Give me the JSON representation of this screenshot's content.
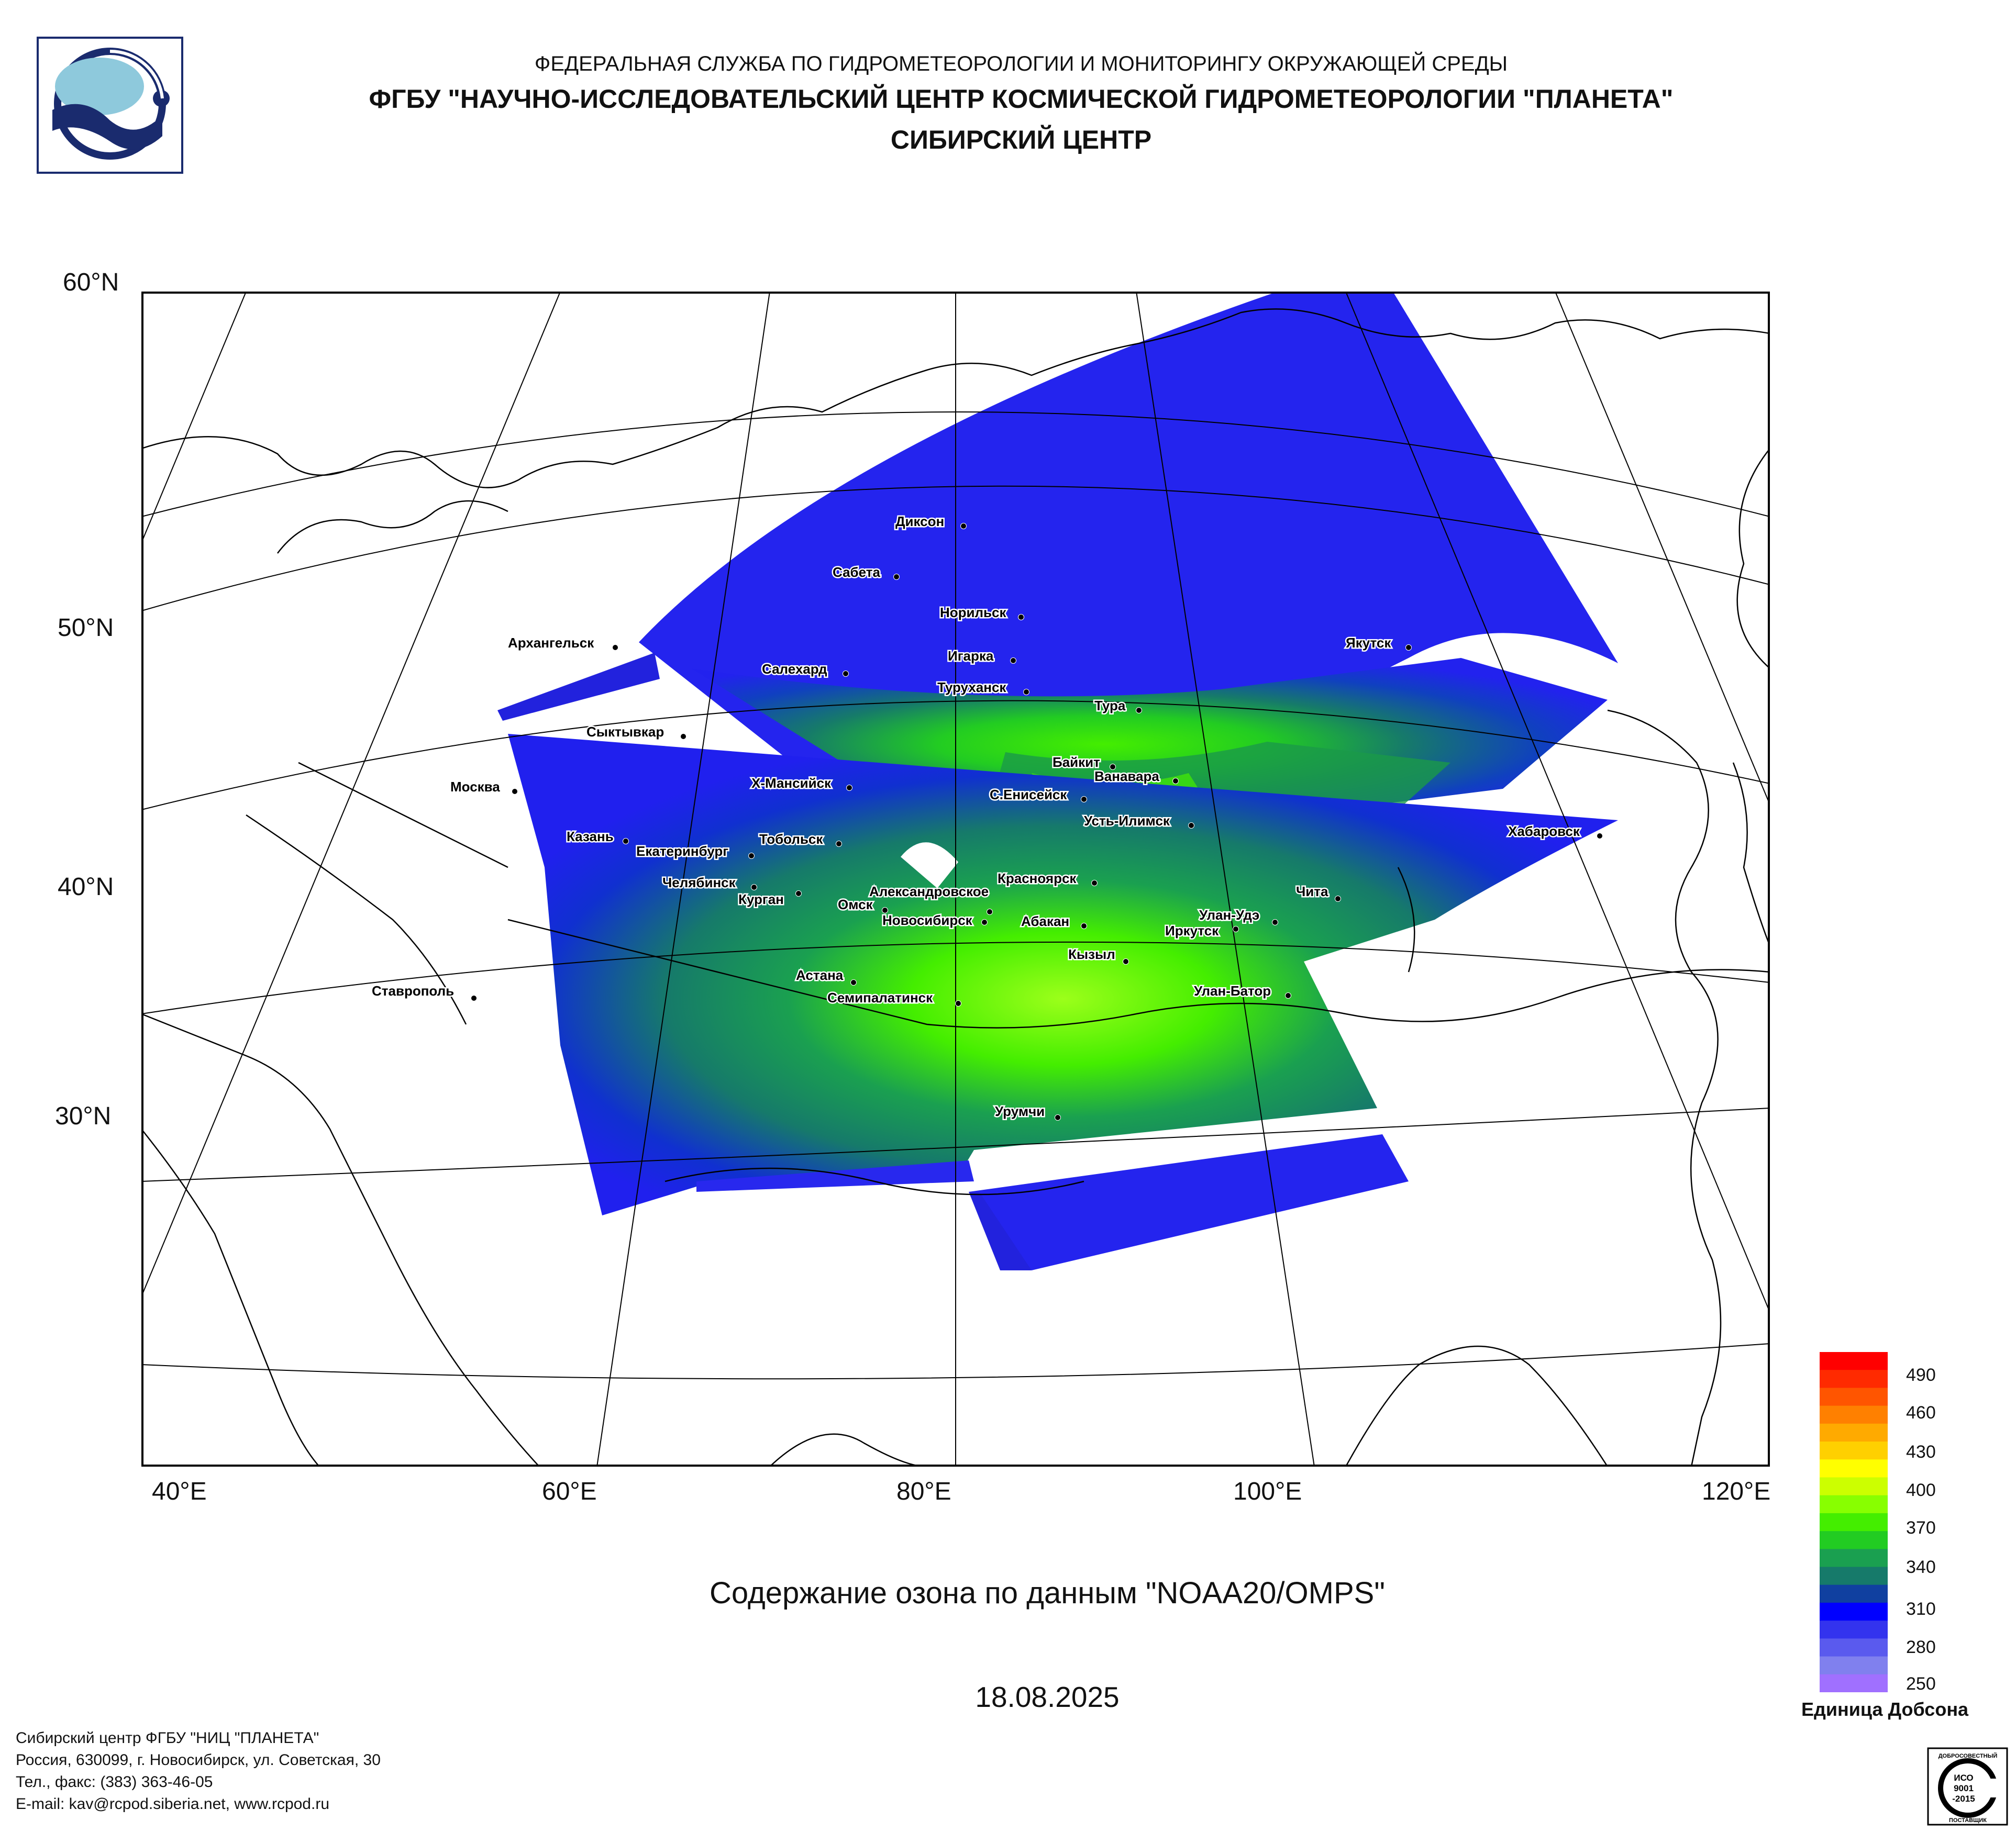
{
  "header": {
    "line1": "ФЕДЕРАЛЬНАЯ СЛУЖБА ПО ГИДРОМЕТЕОРОЛОГИИ И МОНИТОРИНГУ ОКРУЖАЮЩЕЙ СРЕДЫ",
    "line2": "ФГБУ \"НАУЧНО-ИССЛЕДОВАТЕЛЬСКИЙ ЦЕНТР КОСМИЧЕСКОЙ ГИДРОМЕТЕОРОЛОГИИ \"ПЛАНЕТА\"",
    "line3": "СИБИРСКИЙ ЦЕНТР"
  },
  "map": {
    "lat_labels": [
      "60°N",
      "50°N",
      "40°N",
      "30°N"
    ],
    "lon_labels": [
      "40°E",
      "60°E",
      "80°E",
      "100°E",
      "120°E"
    ],
    "cities": [
      "Диксон",
      "Сабета",
      "Норильск",
      "Игарка",
      "Салехард",
      "Туруханск",
      "Тура",
      "Якутск",
      "Архангельск",
      "Сыктывкар",
      "Москва",
      "Х-Мансийск",
      "Байкит",
      "Ванавара",
      "С.Енисейск",
      "Усть-Илимск",
      "Хабаровск",
      "Казань",
      "Тобольск",
      "Екатеринбург",
      "Челябинск",
      "Курган",
      "Александровское",
      "Омск",
      "Новосибирск",
      "Красноярск",
      "Абакан",
      "Чита",
      "Улан-Удэ",
      "Иркутск",
      "Кызыл",
      "Астана",
      "Семипалатинск",
      "Улан-Батор",
      "Ставрополь",
      "Урумчи"
    ]
  },
  "caption": "Содержание озона по данным \"NOAA20/OMPS\"",
  "date": "18.08.2025",
  "legend": {
    "units": "Единица Добсона",
    "labels": [
      "490",
      "460",
      "430",
      "400",
      "370",
      "340",
      "310",
      "280",
      "250"
    ],
    "colors": [
      "#ff0000",
      "#ff2a00",
      "#ff5500",
      "#ff8000",
      "#ffaa00",
      "#ffd000",
      "#ffff00",
      "#ccff00",
      "#88ff00",
      "#44ee00",
      "#22cc22",
      "#1aa050",
      "#167a6a",
      "#1040a0",
      "#0000ff",
      "#3333ee",
      "#5a5aee",
      "#8080ee",
      "#a070ff"
    ]
  },
  "footer": {
    "org": "Сибирский центр ФГБУ \"НИЦ \"ПЛАНЕТА\"",
    "address": "Россия, 630099, г. Новосибирск, ул. Советская, 30",
    "phone": "Тел., факс: (383) 363-46-05",
    "email": "E-mail: kav@rcpod.siberia.net, www.rcpod.ru"
  },
  "cert": {
    "top": "ДОБРОСОВЕСТНЫЙ",
    "l1": "ИСО",
    "l2": "9001",
    "l3": "-2015",
    "bottom": "ПОСТАВЩИК"
  }
}
